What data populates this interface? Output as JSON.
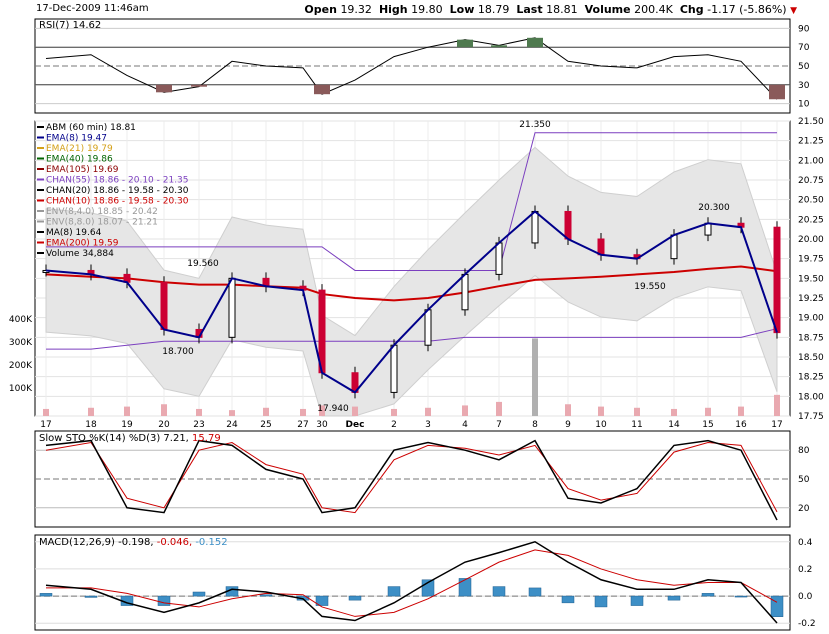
{
  "header": {
    "date": "17-Dec-2009 11:46am",
    "open_label": "Open",
    "open": "19.32",
    "high_label": "High",
    "high": "19.80",
    "low_label": "Low",
    "low": "18.79",
    "last_label": "Last",
    "last": "18.81",
    "volume_label": "Volume",
    "volume": "200.4K",
    "chg_label": "Chg",
    "chg": "-1.17 (-5.86%)",
    "arrow": "▼"
  },
  "rsi": {
    "label": "RSI(7) 14.62",
    "ticks": [
      "90",
      "70",
      "50",
      "30",
      "10"
    ],
    "tick_values": [
      90,
      70,
      50,
      30,
      10
    ]
  },
  "main": {
    "legend": [
      {
        "text": "ABM (60 min) 18.81",
        "color": "#000000"
      },
      {
        "text": "EMA(8) 19.47",
        "color": "#00008b"
      },
      {
        "text": "EMA(21) 19.79",
        "color": "#d4a017"
      },
      {
        "text": "EMA(40) 19.86",
        "color": "#006400"
      },
      {
        "text": "EMA(105) 19.69",
        "color": "#8b0000"
      },
      {
        "text": "CHAN(55) 18.86 - 20.10 - 21.35",
        "color": "#7b3fbf"
      },
      {
        "text": "CHAN(20) 18.86 - 19.58 - 20.30",
        "color": "#000000"
      },
      {
        "text": "CHAN(10) 18.86 - 19.58 - 20.30",
        "color": "#cc0000"
      },
      {
        "text": "ENV(8,4.0) 18.85 - 20.42",
        "color": "#999999"
      },
      {
        "text": "ENV(8,8.0) 18.07 - 21.21",
        "color": "#999999"
      },
      {
        "text": "MA(8) 19.64",
        "color": "#000000"
      },
      {
        "text": "EMA(200) 19.59",
        "color": "#cc0000"
      },
      {
        "text": "Volume 34,884",
        "color": "#000000"
      }
    ],
    "price_ticks": [
      "21.50",
      "21.25",
      "21.00",
      "20.75",
      "20.50",
      "20.25",
      "20.00",
      "19.75",
      "19.50",
      "19.25",
      "19.00",
      "18.75",
      "18.50",
      "18.25",
      "18.00",
      "17.75"
    ],
    "volume_ticks": [
      "400K",
      "300K",
      "200K",
      "100K"
    ],
    "annotations": [
      "21.350",
      "20.300",
      "19.560",
      "19.550",
      "18.700",
      "17.940"
    ],
    "x_labels": [
      "17",
      "18",
      "19",
      "20",
      "23",
      "24",
      "25",
      "27",
      "30",
      "Dec",
      "2",
      "3",
      "4",
      "7",
      "8",
      "9",
      "10",
      "11",
      "14",
      "15",
      "16",
      "17"
    ]
  },
  "sto": {
    "label_a": "Slow STO %K(14) %D(3) 7.21, ",
    "label_b": "15.79",
    "ticks": [
      "80",
      "50",
      "20"
    ],
    "tick_values": [
      80,
      50,
      20
    ]
  },
  "macd": {
    "label_a": "MACD(12,26,9) -0.198, ",
    "label_b": "-0.046, ",
    "label_c": "-0.152",
    "ticks": [
      "0.4",
      "0.2",
      "0.0",
      "-0.2"
    ],
    "tick_values": [
      0.4,
      0.2,
      0.0,
      -0.2
    ]
  },
  "chart_data": {
    "type": "line",
    "title": "ABM (60 min)",
    "x_dates": [
      "17",
      "18",
      "19",
      "20",
      "23",
      "24",
      "25",
      "27",
      "30",
      "Dec",
      "2",
      "3",
      "4",
      "7",
      "8",
      "9",
      "10",
      "11",
      "14",
      "15",
      "16",
      "17"
    ],
    "close": [
      19.6,
      19.55,
      19.45,
      18.85,
      18.75,
      19.5,
      19.4,
      19.35,
      18.3,
      18.05,
      18.65,
      19.1,
      19.55,
      19.95,
      20.35,
      20.0,
      19.8,
      19.75,
      20.05,
      20.2,
      20.15,
      18.81
    ],
    "ema200": [
      19.55,
      19.52,
      19.5,
      19.45,
      19.42,
      19.42,
      19.4,
      19.38,
      19.3,
      19.25,
      19.22,
      19.25,
      19.32,
      19.4,
      19.48,
      19.5,
      19.52,
      19.55,
      19.58,
      19.62,
      19.65,
      19.59
    ],
    "chan55_upper": [
      19.9,
      19.9,
      19.9,
      19.9,
      19.9,
      19.9,
      19.9,
      19.9,
      19.9,
      19.6,
      19.6,
      19.6,
      19.6,
      19.6,
      21.35,
      21.35,
      21.35,
      21.35,
      21.35,
      21.35,
      21.35,
      21.35
    ],
    "chan55_lower": [
      18.6,
      18.6,
      18.65,
      18.7,
      18.7,
      18.7,
      18.7,
      18.7,
      18.7,
      18.7,
      18.7,
      18.7,
      18.75,
      18.75,
      18.75,
      18.75,
      18.75,
      18.75,
      18.75,
      18.75,
      18.75,
      18.86
    ],
    "volume_k": [
      30,
      35,
      40,
      50,
      30,
      25,
      35,
      30,
      45,
      40,
      30,
      35,
      45,
      60,
      330,
      50,
      40,
      35,
      30,
      35,
      40,
      90
    ],
    "ylim": [
      17.75,
      21.5
    ],
    "rsi": [
      58,
      62,
      40,
      22,
      28,
      55,
      50,
      48,
      20,
      35,
      60,
      70,
      78,
      72,
      80,
      55,
      50,
      48,
      60,
      62,
      55,
      14.62
    ],
    "sto_k": [
      85,
      90,
      20,
      15,
      90,
      85,
      60,
      50,
      15,
      20,
      80,
      88,
      80,
      70,
      90,
      30,
      25,
      40,
      85,
      90,
      80,
      7.21
    ],
    "sto_d": [
      80,
      88,
      30,
      20,
      80,
      88,
      65,
      55,
      20,
      15,
      70,
      85,
      82,
      75,
      85,
      40,
      28,
      35,
      78,
      88,
      85,
      15.79
    ],
    "macd": [
      0.08,
      0.05,
      -0.05,
      -0.12,
      -0.05,
      0.05,
      0.03,
      -0.02,
      -0.15,
      -0.18,
      -0.05,
      0.1,
      0.25,
      0.32,
      0.4,
      0.25,
      0.12,
      0.05,
      0.05,
      0.12,
      0.1,
      -0.198
    ],
    "macd_signal": [
      0.06,
      0.06,
      0.02,
      -0.05,
      -0.08,
      -0.02,
      0.02,
      0.01,
      -0.08,
      -0.15,
      -0.12,
      -0.02,
      0.12,
      0.25,
      0.34,
      0.3,
      0.2,
      0.12,
      0.08,
      0.1,
      0.1,
      -0.046
    ]
  }
}
